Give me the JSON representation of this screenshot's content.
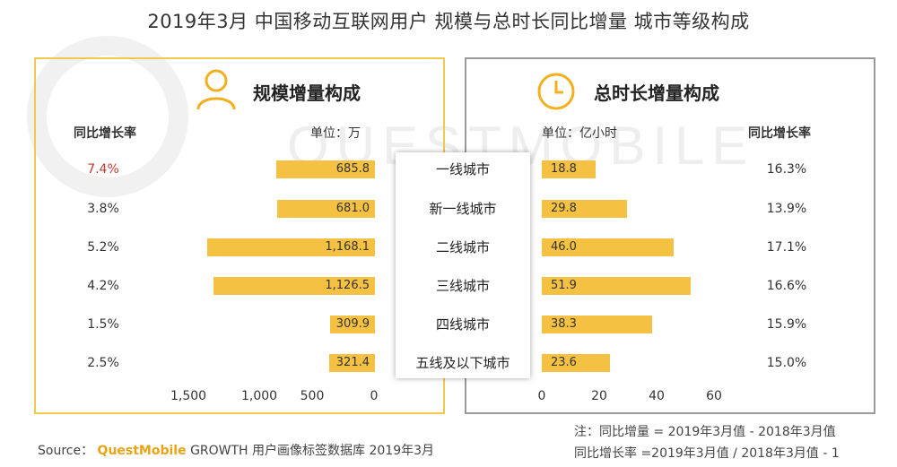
{
  "title": "2019年3月 中国移动互联网用户 规模与总时长同比增量 城市等级构成",
  "watermark": "QUESTMOBILE",
  "left_panel": {
    "title": "规模增量构成",
    "rate_header": "同比增长率",
    "unit": "单位：万"
  },
  "right_panel": {
    "title": "总时长增量构成",
    "unit": "单位：亿小时",
    "rate_header": "同比增长率"
  },
  "cities": [
    "一线城市",
    "新一线城市",
    "二线城市",
    "三线城市",
    "四线城市",
    "五线及以下城市"
  ],
  "footer": {
    "source_prefix": "Source：",
    "source_brand": "QuestMobile",
    "source_rest": "GROWTH 用户画像标签数据库 2019年3月",
    "note1": "注：同比增量 = 2019年3月值 - 2018年3月值",
    "note2": "同比增长率 =2019年3月值 / 2018年3月值 - 1"
  },
  "colors": {
    "bar": "#f5c142",
    "left_border": "#f2c94c",
    "right_border": "#9a9a9a",
    "highlight_rate": "#c0392b"
  },
  "chart_data": [
    {
      "type": "bar",
      "title": "规模增量构成",
      "ylabel": "单位：万",
      "categories": [
        "一线城市",
        "新一线城市",
        "二线城市",
        "三线城市",
        "四线城市",
        "五线及以下城市"
      ],
      "values": [
        685.8,
        681.0,
        1168.1,
        1126.5,
        309.9,
        321.4
      ],
      "value_labels": [
        "685.8",
        "681.0",
        "1,168.1",
        "1,126.5",
        "309.9",
        "321.4"
      ],
      "rates": [
        "7.4%",
        "3.8%",
        "5.2%",
        "4.2%",
        "1.5%",
        "2.5%"
      ],
      "xlim": [
        1500,
        0
      ],
      "ticks": [
        "1,500",
        "1,000",
        "500",
        "0"
      ],
      "grid": false
    },
    {
      "type": "bar",
      "title": "总时长增量构成",
      "ylabel": "单位：亿小时",
      "categories": [
        "一线城市",
        "新一线城市",
        "二线城市",
        "三线城市",
        "四线城市",
        "五线及以下城市"
      ],
      "values": [
        18.8,
        29.8,
        46.0,
        51.9,
        38.3,
        23.6
      ],
      "value_labels": [
        "18.8",
        "29.8",
        "46.0",
        "51.9",
        "38.3",
        "23.6"
      ],
      "rates": [
        "16.3%",
        "13.9%",
        "17.1%",
        "16.6%",
        "15.9%",
        "15.0%"
      ],
      "xlim": [
        0,
        60
      ],
      "ticks": [
        "0",
        "20",
        "40",
        "60"
      ],
      "grid": false
    }
  ]
}
